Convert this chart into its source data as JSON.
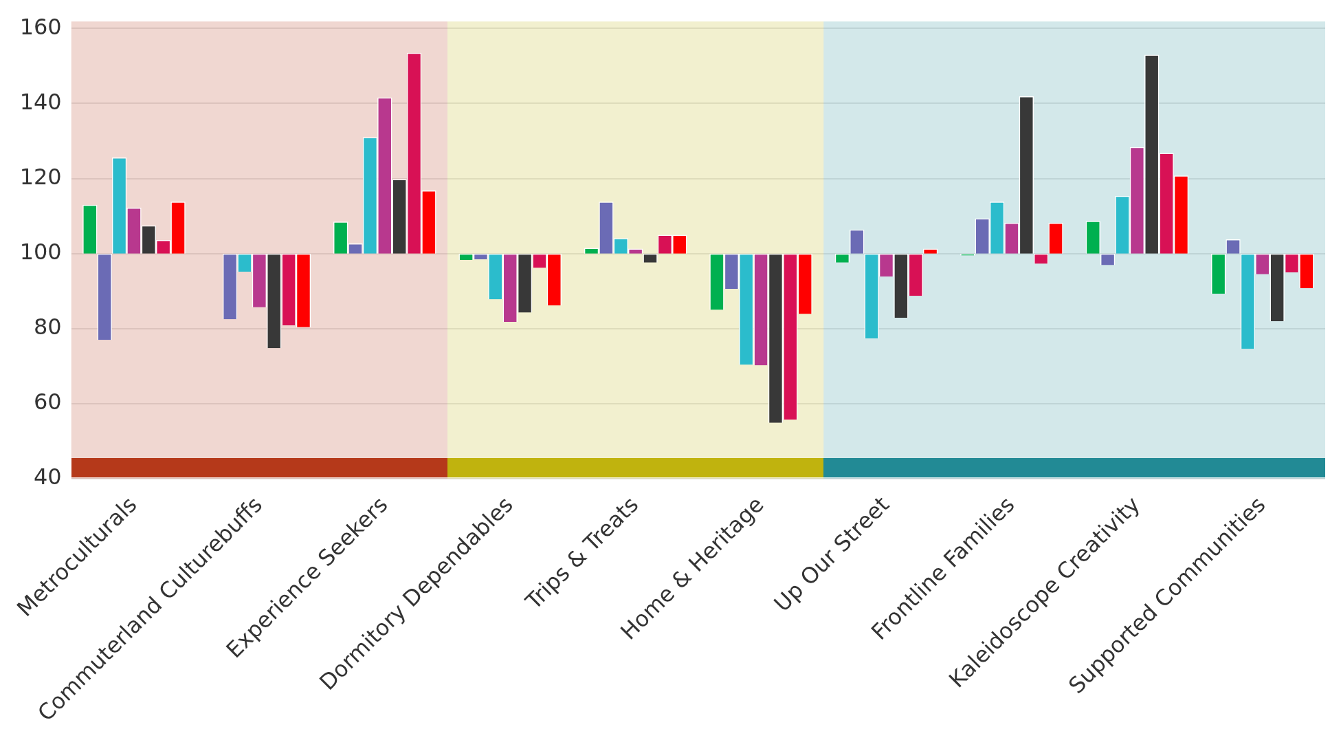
{
  "chart_data": {
    "type": "bar",
    "categories": [
      "Metroculturals",
      "Commuterland Culturebuffs",
      "Experience Seekers",
      "Dormitory Dependables",
      "Trips & Treats",
      "Home & Heritage",
      "Up Our Street",
      "Frontline Families",
      "Kaleidoscope Creativity",
      "Supported Communities"
    ],
    "series": [
      {
        "color": "#00b050",
        "base": [
          100,
          null,
          100,
          100,
          100,
          100,
          100,
          100,
          100,
          100
        ],
        "values": [
          13,
          null,
          8.5,
          -1.7,
          1.5,
          -15,
          -2.4,
          -0.5,
          8.7,
          -10.7
        ]
      },
      {
        "color": "#6b6bb5",
        "base": [
          100,
          100,
          100,
          100,
          100,
          100,
          100,
          100,
          100,
          100
        ],
        "values": [
          -23,
          -17.5,
          2.7,
          -1.5,
          13.8,
          -9.4,
          6.4,
          9.4,
          -3.1,
          3.8
        ]
      },
      {
        "color": "#2bbccc",
        "base": [
          100,
          100,
          100,
          100,
          100,
          100,
          100,
          100,
          100,
          100
        ],
        "values": [
          25.6,
          -4.8,
          31,
          -12.2,
          4.1,
          -29.6,
          -22.6,
          13.8,
          15.4,
          -25.4
        ]
      },
      {
        "color": "#b8388e",
        "base": [
          100,
          100,
          100,
          100,
          100,
          100,
          100,
          100,
          100,
          100
        ],
        "values": [
          12.2,
          -14.3,
          41.6,
          -18.2,
          1.3,
          -29.8,
          -6.1,
          8.2,
          28.4,
          -5.5
        ]
      },
      {
        "color": "#383838",
        "base": [
          100,
          100,
          100,
          100,
          100,
          100,
          100,
          100,
          100,
          100
        ],
        "values": [
          7.5,
          -25.2,
          19.8,
          -15.7,
          -2.4,
          -45.1,
          -17.1,
          41.9,
          53,
          -18
        ]
      },
      {
        "color": "#d81155",
        "base": [
          100,
          100,
          100,
          100,
          100,
          100,
          100,
          100,
          100,
          100
        ],
        "values": [
          3.6,
          -19.1,
          53.5,
          -3.8,
          5,
          -44.2,
          -11.3,
          -2.7,
          26.8,
          -5
        ]
      },
      {
        "color": "#ff0000",
        "base": [
          100,
          100,
          100,
          100,
          100,
          100,
          100,
          100,
          100,
          100
        ],
        "values": [
          13.8,
          -19.6,
          16.8,
          -13.8,
          5,
          -16.1,
          1.3,
          8.2,
          20.8,
          -9.2
        ]
      }
    ],
    "ylim": [
      40,
      160
    ],
    "yticks": [
      40,
      60,
      80,
      100,
      120,
      140,
      160
    ],
    "grid": "y",
    "legend": false,
    "bands": [
      {
        "axis": "x",
        "from": "Metroculturals",
        "to": "Experience Seekers",
        "color": "#b5391a"
      },
      {
        "axis": "x",
        "from": "Dormitory Dependables",
        "to": "Home & Heritage",
        "color": "#c0b30e"
      },
      {
        "axis": "x",
        "from": "Up Our Street",
        "to": "Supported Communities",
        "color": "#228a95"
      }
    ]
  }
}
